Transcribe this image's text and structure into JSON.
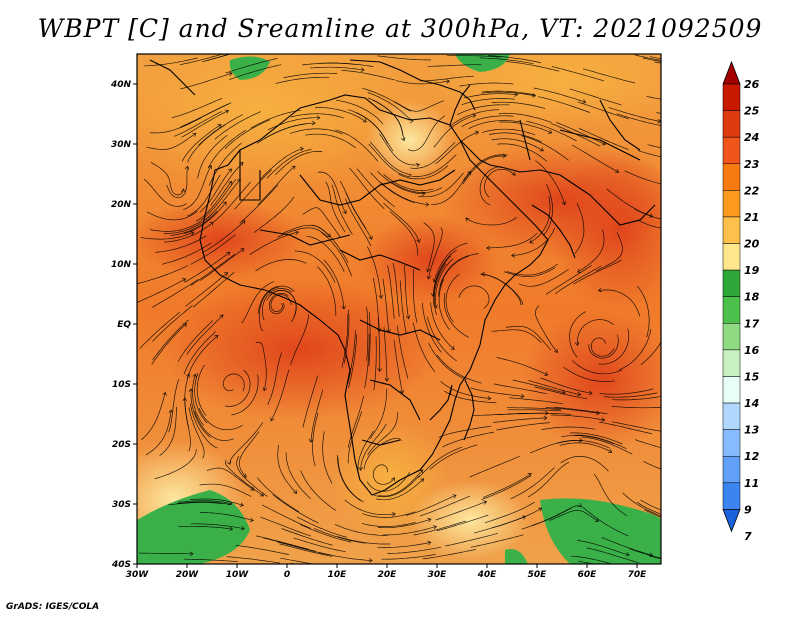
{
  "title": "WBPT [C] and Sreamline at 300hPa, VT: 2021092509",
  "footer": "GrADS: IGES/COLA",
  "map": {
    "x_ticks": [
      "30W",
      "20W",
      "10W",
      "0",
      "10E",
      "20E",
      "30E",
      "40E",
      "50E",
      "60E",
      "70E"
    ],
    "y_ticks": [
      "40N",
      "30N",
      "20N",
      "10N",
      "EQ",
      "10S",
      "20S",
      "30S",
      "40S"
    ],
    "lon_range": [
      -30,
      75
    ],
    "lat_range": [
      -40,
      45
    ]
  },
  "colorbar": {
    "labels": [
      "26",
      "25",
      "24",
      "23",
      "22",
      "21",
      "20",
      "19",
      "18",
      "17",
      "16",
      "15",
      "14",
      "13",
      "12",
      "11",
      "9",
      "7"
    ],
    "colors": [
      "#a50000",
      "#c81800",
      "#e03a10",
      "#f0561c",
      "#f77a10",
      "#fb9a1c",
      "#fdc04a",
      "#fde68c",
      "#2ea838",
      "#4cc04a",
      "#90da84",
      "#c8f0c0",
      "#e8fff8",
      "#b0d8ff",
      "#86bcff",
      "#60a0f8",
      "#3c84f0",
      "#1c62dc"
    ]
  }
}
